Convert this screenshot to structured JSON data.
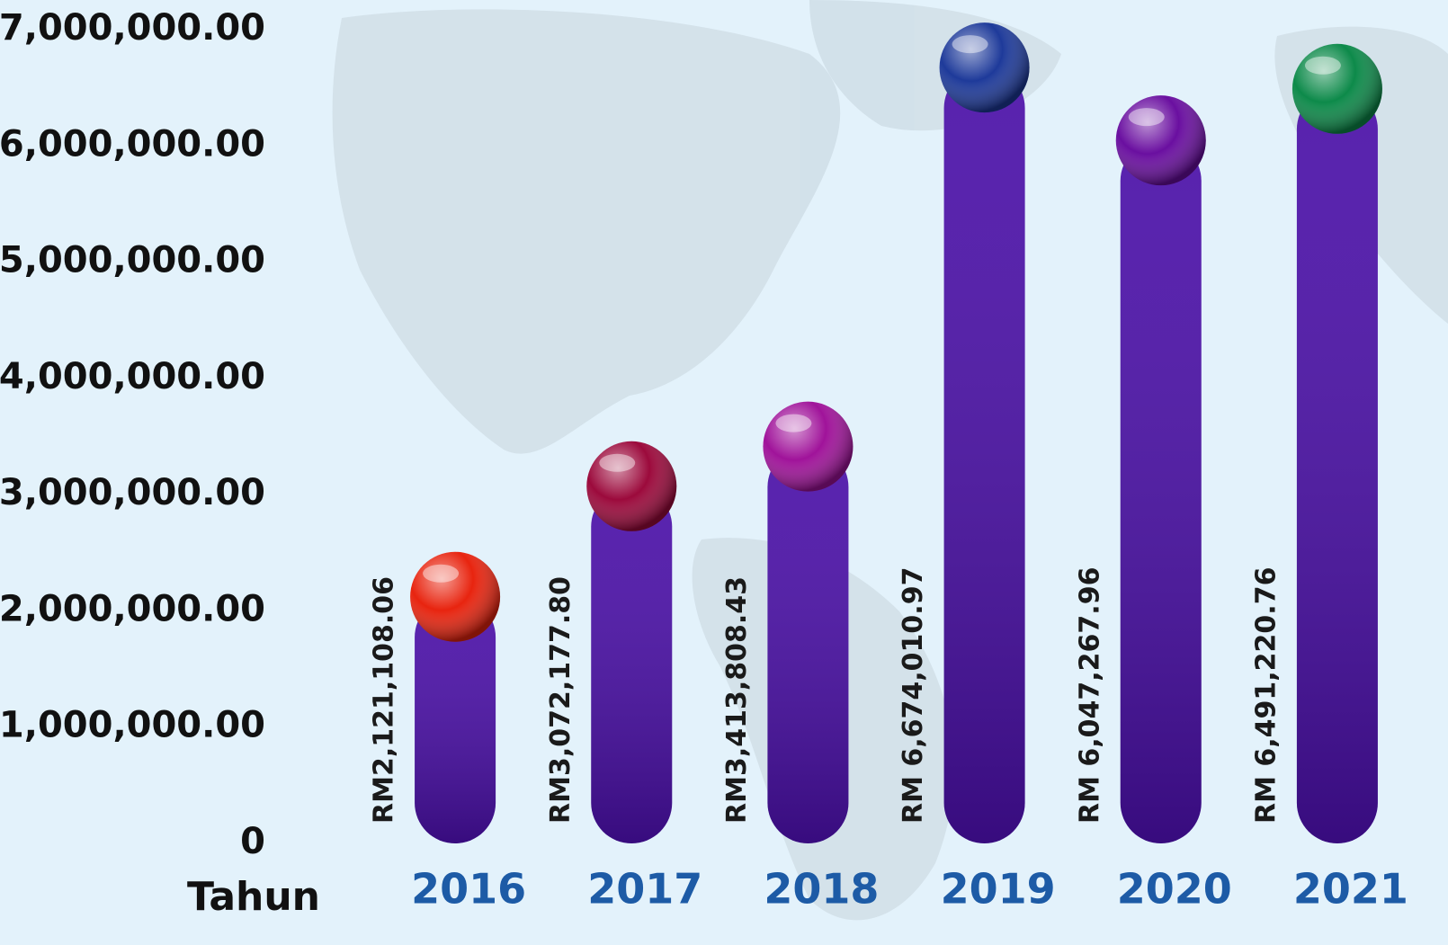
{
  "chart_data": {
    "type": "bar",
    "x_label": "Tahun",
    "categories": [
      "2016",
      "2017",
      "2018",
      "2019",
      "2020",
      "2021"
    ],
    "values": [
      2121108.06,
      3072177.8,
      3413808.43,
      6674010.97,
      6047267.96,
      6491220.76
    ],
    "value_labels": [
      "RM2,121,108.06",
      "RM3,072,177.80",
      "RM3,413,808.43",
      "RM 6,674,010.97",
      "RM 6,047,267.96",
      "RM 6,491,220.76"
    ],
    "color": "#4a0fa8",
    "marker_colors": [
      "#e8240f",
      "#9c0a3c",
      "#a0139a",
      "#1e3a9a",
      "#6a0fa0",
      "#0d8a4a"
    ],
    "ylim": [
      0,
      7000000
    ],
    "yticks": [
      0,
      {
        "value": 1000000,
        "label": "1,000,000.00"
      },
      {
        "value": 2000000,
        "label": "2,000,000.00"
      },
      {
        "value": 3000000,
        "label": "3,000,000.00"
      },
      {
        "value": 4000000,
        "label": "4,000,000.00"
      },
      {
        "value": 5000000,
        "label": "5,000,000.00"
      },
      {
        "value": 6000000,
        "label": "6,000,000.00"
      },
      {
        "value": 7000000,
        "label": "7,000,000.00"
      }
    ],
    "grid": false
  }
}
